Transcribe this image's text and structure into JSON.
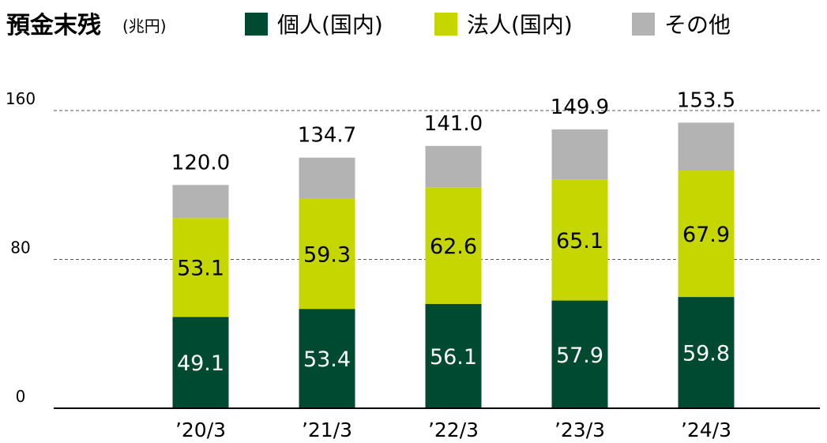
{
  "chart_data": {
    "type": "bar",
    "stacked": true,
    "title": "預金末残",
    "unit": "(兆円)",
    "categories": [
      "’20/3",
      "’21/3",
      "’22/3",
      "’23/3",
      "’24/3"
    ],
    "series": [
      {
        "name": "個人(国内)",
        "color": "#004a31",
        "label_color": "#ffffff",
        "values": [
          49.1,
          53.4,
          56.1,
          57.9,
          59.8
        ]
      },
      {
        "name": "法人(国内)",
        "color": "#c6d600",
        "label_color": "#000000",
        "values": [
          53.1,
          59.3,
          62.6,
          65.1,
          67.9
        ]
      },
      {
        "name": "その他",
        "color": "#b3b3b3",
        "values": [
          17.8,
          22.0,
          22.3,
          26.9,
          25.8
        ]
      }
    ],
    "segment_labels": [
      [
        "49.1",
        "53.4",
        "56.1",
        "57.9",
        "59.8"
      ],
      [
        "53.1",
        "59.3",
        "62.6",
        "65.1",
        "67.9"
      ]
    ],
    "totals": [
      "120.0",
      "134.7",
      "141.0",
      "149.9",
      "153.5"
    ],
    "y_ticks": [
      0,
      80,
      160
    ],
    "ylim": [
      0,
      160
    ],
    "grid": "dashed",
    "legend_position": "top"
  }
}
